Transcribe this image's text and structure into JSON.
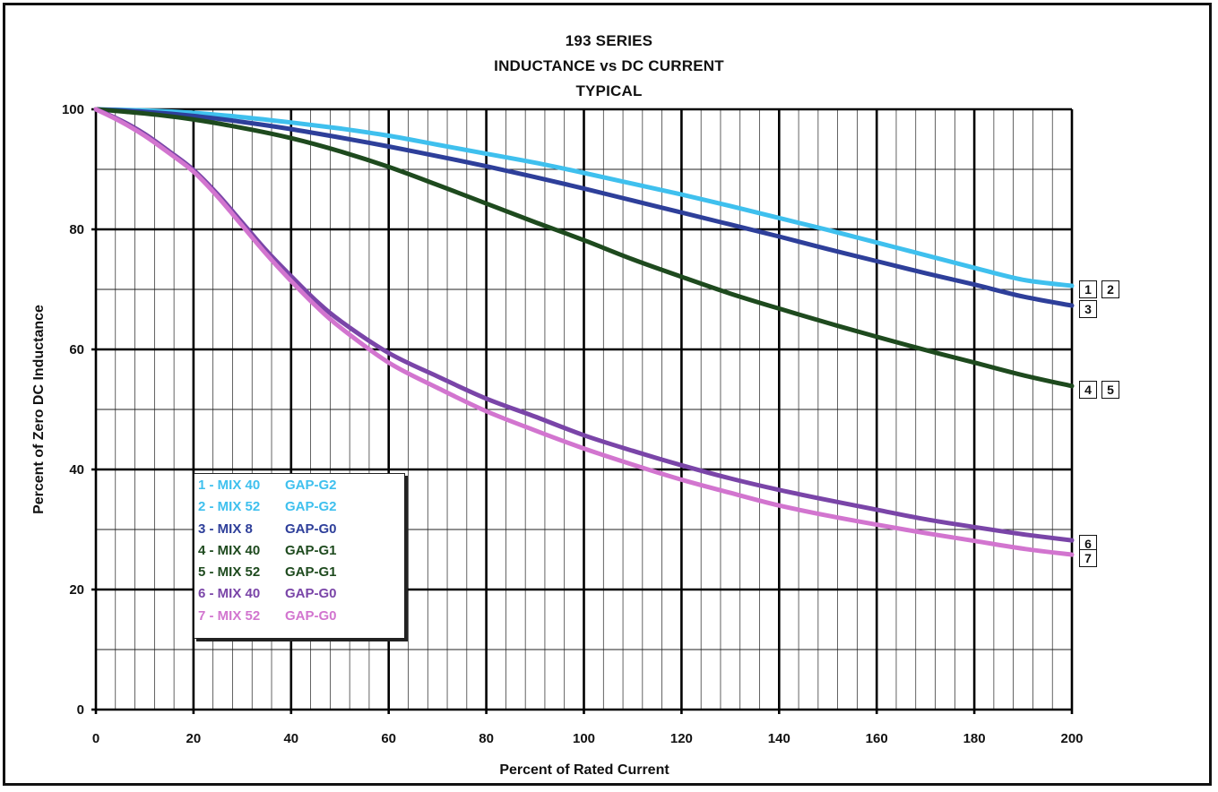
{
  "chart_data": {
    "type": "line",
    "title": [
      "193 SERIES",
      "INDUCTANCE vs DC CURRENT",
      "TYPICAL"
    ],
    "xlabel": "Percent of Rated Current",
    "ylabel": "Percent of Zero DC Inductance",
    "xlim": [
      0,
      200
    ],
    "ylim": [
      0,
      100
    ],
    "xticks": [
      "0",
      "20",
      "40",
      "60",
      "80",
      "100",
      "120",
      "140",
      "160",
      "180",
      "200"
    ],
    "yticks": [
      "0",
      "20",
      "40",
      "60",
      "80",
      "100"
    ],
    "grid": true,
    "legend_position": "lower-left",
    "series": [
      {
        "id": "s12",
        "color": "#3fc0ee",
        "x": [
          0,
          10,
          20,
          30,
          40,
          50,
          60,
          70,
          80,
          90,
          100,
          110,
          120,
          130,
          140,
          150,
          160,
          170,
          180,
          190,
          200
        ],
        "y": [
          100,
          99.8,
          99.4,
          98.7,
          97.8,
          96.8,
          95.6,
          94.1,
          92.6,
          91.1,
          89.4,
          87.6,
          85.8,
          83.9,
          81.9,
          79.9,
          77.8,
          75.7,
          73.6,
          71.6,
          70.6
        ]
      },
      {
        "id": "s3",
        "color": "#2e3f9a",
        "x": [
          0,
          10,
          20,
          30,
          40,
          50,
          60,
          70,
          80,
          90,
          100,
          110,
          120,
          130,
          140,
          150,
          160,
          170,
          180,
          190,
          200
        ],
        "y": [
          100,
          99.6,
          98.9,
          97.9,
          96.7,
          95.3,
          93.8,
          92.2,
          90.5,
          88.7,
          86.8,
          84.8,
          82.8,
          80.8,
          78.8,
          76.7,
          74.7,
          72.7,
          70.8,
          68.8,
          67.3
        ]
      },
      {
        "id": "s45",
        "color": "#1e4a1e",
        "x": [
          0,
          10,
          20,
          30,
          40,
          50,
          60,
          70,
          80,
          90,
          100,
          110,
          120,
          130,
          140,
          150,
          160,
          170,
          180,
          190,
          200
        ],
        "y": [
          100,
          99.3,
          98.3,
          96.9,
          95.2,
          93.0,
          90.4,
          87.4,
          84.3,
          81.2,
          78.2,
          75.0,
          72.1,
          69.3,
          66.8,
          64.4,
          62.1,
          59.9,
          57.8,
          55.7,
          53.9
        ]
      },
      {
        "id": "s6",
        "color": "#7a45a8",
        "x": [
          0,
          5,
          10,
          15,
          20,
          25,
          30,
          35,
          40,
          45,
          50,
          60,
          70,
          80,
          90,
          100,
          110,
          120,
          130,
          140,
          150,
          160,
          170,
          180,
          190,
          200
        ],
        "y": [
          100,
          98.2,
          95.9,
          93.0,
          89.9,
          85.8,
          81.1,
          76.4,
          72.2,
          68.2,
          64.8,
          59.4,
          55.5,
          51.8,
          48.8,
          45.7,
          43.1,
          40.7,
          38.5,
          36.6,
          34.9,
          33.3,
          31.7,
          30.4,
          29.2,
          28.2
        ]
      },
      {
        "id": "s7",
        "color": "#d275cf",
        "x": [
          0,
          5,
          10,
          15,
          20,
          25,
          30,
          35,
          40,
          45,
          50,
          60,
          70,
          80,
          90,
          100,
          110,
          120,
          130,
          140,
          150,
          160,
          170,
          180,
          190,
          200
        ],
        "y": [
          100,
          98.0,
          95.6,
          92.7,
          89.6,
          85.4,
          80.6,
          75.8,
          71.4,
          67.3,
          63.7,
          57.8,
          53.6,
          49.7,
          46.5,
          43.5,
          40.8,
          38.3,
          36.1,
          34.0,
          32.3,
          30.8,
          29.4,
          28.1,
          26.8,
          25.8
        ]
      }
    ],
    "legend": [
      {
        "name": "1 - MIX 40",
        "gap": "GAP-G2",
        "color": "#3fc0ee"
      },
      {
        "name": "2 - MIX 52",
        "gap": "GAP-G2",
        "color": "#3fc0ee"
      },
      {
        "name": "3 - MIX 8",
        "gap": "GAP-G0",
        "color": "#2e3f9a"
      },
      {
        "name": "4 - MIX 40",
        "gap": "GAP-G1",
        "color": "#1e4a1e"
      },
      {
        "name": "5 - MIX 52",
        "gap": "GAP-G1",
        "color": "#1e4a1e"
      },
      {
        "name": "6 - MIX 40",
        "gap": "GAP-G0",
        "color": "#7a45a8"
      },
      {
        "name": "7 - MIX 52",
        "gap": "GAP-G0",
        "color": "#d275cf"
      }
    ],
    "end_tags": [
      {
        "labels": [
          "1",
          "2"
        ],
        "y": 70.6
      },
      {
        "labels": [
          "3"
        ],
        "y": 67.3
      },
      {
        "labels": [
          "4",
          "5"
        ],
        "y": 53.9
      },
      {
        "labels": [
          "6"
        ],
        "y": 28.2
      },
      {
        "labels": [
          "7"
        ],
        "y": 25.8
      }
    ]
  }
}
